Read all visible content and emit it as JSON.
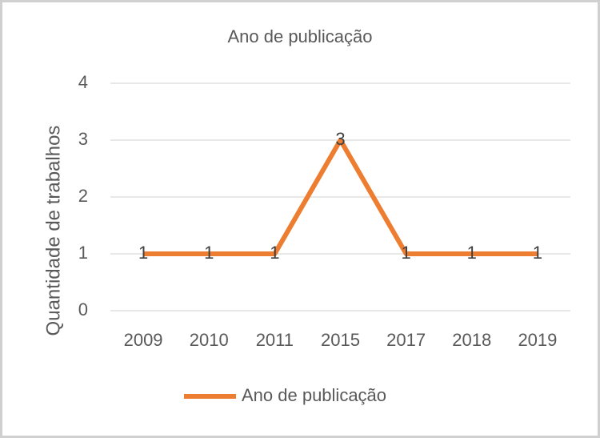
{
  "chart_data": {
    "type": "line",
    "title": "Ano de publicação",
    "y_label": "Quantidade de trabalhos",
    "categories": [
      "2009",
      "2010",
      "2011",
      "2015",
      "2017",
      "2018",
      "2019"
    ],
    "series": [
      {
        "name": "Ano de publicação",
        "color": "#ed7d31",
        "values": [
          1,
          1,
          1,
          3,
          1,
          1,
          1
        ]
      }
    ],
    "ylim": [
      0,
      4
    ],
    "yticks": [
      0,
      1,
      2,
      3,
      4
    ],
    "grid": true,
    "data_labels": true,
    "legend": "bottom"
  }
}
